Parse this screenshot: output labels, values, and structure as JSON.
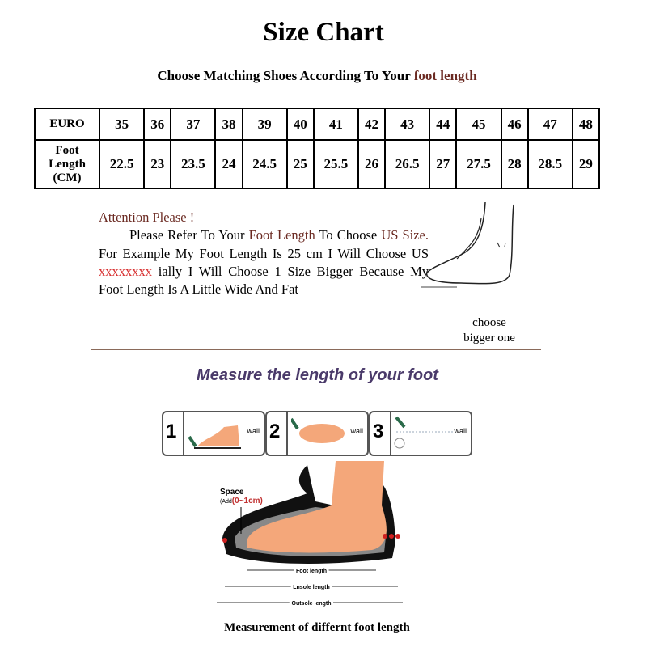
{
  "title": "Size Chart",
  "subtitle": {
    "text": "Choose Matching Shoes According To Your ",
    "highlight": "foot length"
  },
  "table": {
    "row1_header": "EURO",
    "row2_header": [
      "Foot",
      "Length",
      "(CM)"
    ],
    "euro": [
      "35",
      "36",
      "37",
      "38",
      "39",
      "40",
      "41",
      "42",
      "43",
      "44",
      "45",
      "46",
      "47",
      "48"
    ],
    "foot_length_cm": [
      "22.5",
      "23",
      "23.5",
      "24",
      "24.5",
      "25",
      "25.5",
      "26",
      "26.5",
      "27",
      "27.5",
      "28",
      "28.5",
      "29"
    ]
  },
  "attention": {
    "heading": "Attention Please !",
    "p1": "Please Refer To Your ",
    "p1_hl": "Foot Length",
    "p2": " To Choose ",
    "p2_hl": "US Size.",
    "p3": " For Example My Foot Length Is 25 cm I Will Choose US ",
    "p3_red": "xxxxxxxx",
    "p4": " ially I Will Choose 1 Size Bigger Because My Foot Length Is A Little Wide And Fat"
  },
  "choose_note": [
    "choose",
    "bigger one"
  ],
  "measure_heading": "Measure the length of your foot",
  "steps": [
    {
      "n": "1",
      "wall": "wall"
    },
    {
      "n": "2",
      "wall": "wall"
    },
    {
      "n": "3",
      "wall": "wall"
    }
  ],
  "diagram": {
    "space": "Space",
    "add": "(Add",
    "add_red": "(0~1cm)",
    "foot": "Foot length",
    "insole": "Lnsole length",
    "outsole": "Outsole length"
  },
  "caption": "Measurement of differnt foot length",
  "colors": {
    "brown": "#6b2a22",
    "red": "#d83030",
    "heading_purple": "#4a3a6a",
    "skin": "#f4a77a"
  }
}
